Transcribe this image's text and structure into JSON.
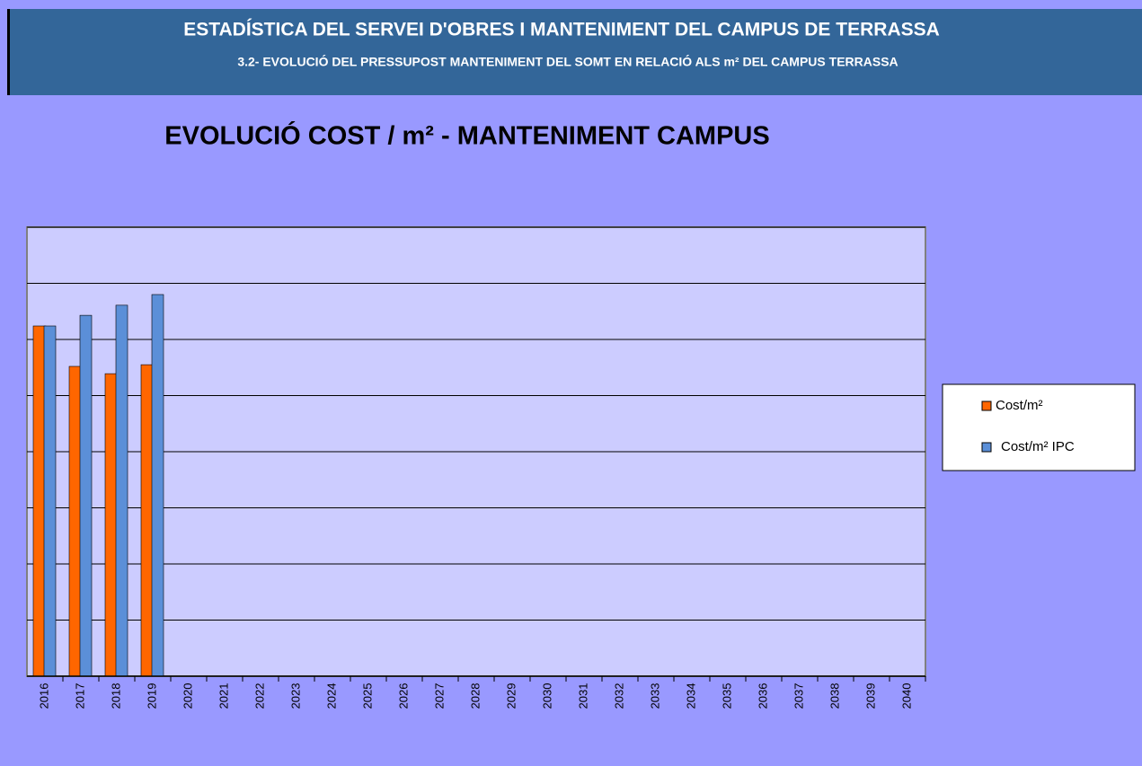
{
  "header": {
    "title": "ESTADÍSTICA DEL SERVEI D'OBRES I MANTENIMENT DEL CAMPUS DE TERRASSA",
    "subtitle": "3.2- EVOLUCIÓ DEL PRESSUPOST MANTENIMENT DEL SOMT  EN RELACIÓ ALS m² DEL CAMPUS TERRASSA"
  },
  "chart_data": {
    "type": "bar",
    "title": "EVOLUCIÓ COST / m² - MANTENIMENT CAMPUS",
    "categories": [
      "2016",
      "2017",
      "2018",
      "2019",
      "2020",
      "2021",
      "2022",
      "2023",
      "2024",
      "2025",
      "2026",
      "2027",
      "2028",
      "2029",
      "2030",
      "2031",
      "2032",
      "2033",
      "2034",
      "2035",
      "2036",
      "2037",
      "2038",
      "2039",
      "2040"
    ],
    "series": [
      {
        "name": "Cost/m²",
        "color": "#ff6600",
        "values": [
          6.24,
          5.52,
          5.39,
          5.55,
          null,
          null,
          null,
          null,
          null,
          null,
          null,
          null,
          null,
          null,
          null,
          null,
          null,
          null,
          null,
          null,
          null,
          null,
          null,
          null,
          null
        ]
      },
      {
        "name": "Cost/m² IPC",
        "color": "#5b8fd8",
        "values": [
          6.24,
          6.43,
          6.61,
          6.8,
          null,
          null,
          null,
          null,
          null,
          null,
          null,
          null,
          null,
          null,
          null,
          null,
          null,
          null,
          null,
          null,
          null,
          null,
          null,
          null,
          null
        ]
      }
    ],
    "ylim": [
      0,
      8
    ],
    "yticks": [
      0,
      1,
      2,
      3,
      4,
      5,
      6,
      7,
      8
    ],
    "grid": true,
    "legend": "right"
  }
}
